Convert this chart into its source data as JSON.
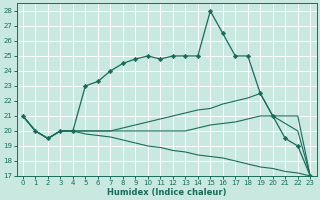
{
  "xlabel": "Humidex (Indice chaleur)",
  "bg_color": "#c8e8e0",
  "line_color": "#1a6b5a",
  "grid_color": "#b0d8d0",
  "ylim": [
    17,
    28.5
  ],
  "xlim": [
    -0.5,
    23.5
  ],
  "yticks": [
    17,
    18,
    19,
    20,
    21,
    22,
    23,
    24,
    25,
    26,
    27,
    28
  ],
  "xticks": [
    0,
    1,
    2,
    3,
    4,
    5,
    6,
    7,
    8,
    9,
    10,
    11,
    12,
    13,
    14,
    15,
    16,
    17,
    18,
    19,
    20,
    21,
    22,
    23
  ],
  "s1_x": [
    0,
    1,
    2,
    3,
    4,
    5,
    6,
    7,
    8,
    9,
    10,
    11,
    12,
    13,
    14,
    15,
    16,
    17,
    18,
    19,
    20,
    21,
    22,
    23
  ],
  "s1_y": [
    21.0,
    20.0,
    19.5,
    20.0,
    20.0,
    23.0,
    23.3,
    24.0,
    24.5,
    24.8,
    25.0,
    24.8,
    25.0,
    25.0,
    25.0,
    28.0,
    26.5,
    25.0,
    25.0,
    22.5,
    21.0,
    19.5,
    19.0,
    17.0
  ],
  "s2_x": [
    0,
    1,
    2,
    3,
    4,
    5,
    6,
    7,
    8,
    9,
    10,
    11,
    12,
    13,
    14,
    15,
    16,
    17,
    18,
    19,
    20,
    21,
    22,
    23
  ],
  "s2_y": [
    21.0,
    20.0,
    19.5,
    20.0,
    20.0,
    20.0,
    20.0,
    20.0,
    20.2,
    20.4,
    20.6,
    20.8,
    21.0,
    21.2,
    21.4,
    21.5,
    21.8,
    22.0,
    22.2,
    22.5,
    21.0,
    21.0,
    21.0,
    17.0
  ],
  "s3_x": [
    0,
    1,
    2,
    3,
    4,
    5,
    6,
    7,
    8,
    9,
    10,
    11,
    12,
    13,
    14,
    15,
    16,
    17,
    18,
    19,
    20,
    21,
    22,
    23
  ],
  "s3_y": [
    21.0,
    20.0,
    19.5,
    20.0,
    20.0,
    20.0,
    20.0,
    20.0,
    20.0,
    20.0,
    20.0,
    20.0,
    20.0,
    20.0,
    20.2,
    20.4,
    20.5,
    20.6,
    20.8,
    21.0,
    21.0,
    20.5,
    20.0,
    17.0
  ],
  "s4_x": [
    0,
    1,
    2,
    3,
    4,
    5,
    6,
    7,
    8,
    9,
    10,
    11,
    12,
    13,
    14,
    15,
    16,
    17,
    18,
    19,
    20,
    21,
    22,
    23
  ],
  "s4_y": [
    21.0,
    20.0,
    19.5,
    20.0,
    20.0,
    19.8,
    19.7,
    19.6,
    19.4,
    19.2,
    19.0,
    18.9,
    18.7,
    18.6,
    18.4,
    18.3,
    18.2,
    18.0,
    17.8,
    17.6,
    17.5,
    17.3,
    17.2,
    17.0
  ]
}
